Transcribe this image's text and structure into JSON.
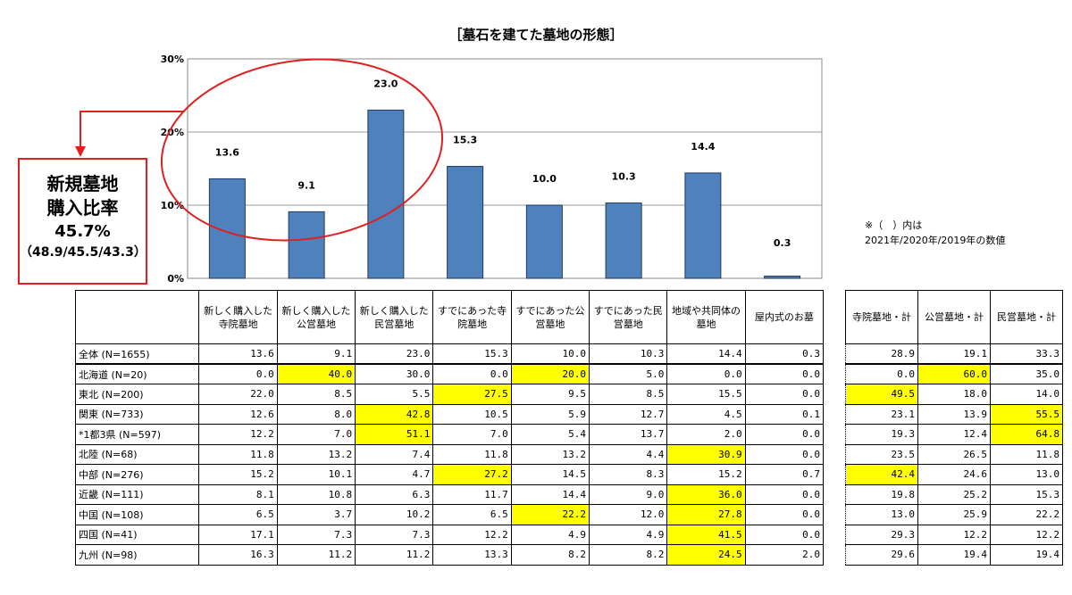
{
  "chart_data": {
    "type": "bar",
    "title": "［墓石を建てた墓地の形態］",
    "categories": [
      "新しく購入した寺院墓地",
      "新しく購入した公営墓地",
      "新しく購入した民営墓地",
      "すでにあった寺院墓地",
      "すでにあった公営墓地",
      "すでにあった民営墓地",
      "地域や共同体の墓地",
      "屋内式のお墓"
    ],
    "values": [
      13.6,
      9.1,
      23.0,
      15.3,
      10.0,
      10.3,
      14.4,
      0.3
    ],
    "value_labels": [
      "13.6",
      "9.1",
      "23.0",
      "15.3",
      "10.0",
      "10.3",
      "14.4",
      "0.3"
    ],
    "ylim": [
      0,
      30
    ],
    "yticks": [
      "0%",
      "10%",
      "20%",
      "30%"
    ],
    "grid": true,
    "bar_color": "#4f81bd",
    "highlight_color": "#e02020"
  },
  "callout": {
    "line1": "新規墓地",
    "line2": "購入比率",
    "line3": "45.7%",
    "line4": "（48.9/45.5/43.3）"
  },
  "note": {
    "line1": "※（　）内は",
    "line2": "2021年/2020年/2019年の数値"
  },
  "table": {
    "headers": [
      "新しく購入した寺院墓地",
      "新しく購入した公営墓地",
      "新しく購入した民営墓地",
      "すでにあった寺院墓地",
      "すでにあった公営墓地",
      "すでにあった民営墓地",
      "地域や共同体の墓地",
      "屋内式のお墓"
    ],
    "side_headers": [
      "寺院墓地・計",
      "公営墓地・計",
      "民営墓地・計"
    ],
    "rows": [
      {
        "label": "全体 (N=1655)",
        "values": [
          "13.6",
          "9.1",
          "23.0",
          "15.3",
          "10.0",
          "10.3",
          "14.4",
          "0.3"
        ],
        "hl": [],
        "side": [
          "28.9",
          "19.1",
          "33.3"
        ],
        "side_hl": []
      },
      {
        "label": "北海道 (N=20)",
        "values": [
          "0.0",
          "40.0",
          "30.0",
          "0.0",
          "20.0",
          "5.0",
          "0.0",
          "0.0"
        ],
        "hl": [
          1,
          4
        ],
        "side": [
          "0.0",
          "60.0",
          "35.0"
        ],
        "side_hl": [
          1
        ]
      },
      {
        "label": "東北 (N=200)",
        "values": [
          "22.0",
          "8.5",
          "5.5",
          "27.5",
          "9.5",
          "8.5",
          "15.5",
          "0.0"
        ],
        "hl": [
          3
        ],
        "side": [
          "49.5",
          "18.0",
          "14.0"
        ],
        "side_hl": [
          0
        ]
      },
      {
        "label": "関東 (N=733)",
        "values": [
          "12.6",
          "8.0",
          "42.8",
          "10.5",
          "5.9",
          "12.7",
          "4.5",
          "0.1"
        ],
        "hl": [
          2
        ],
        "side": [
          "23.1",
          "13.9",
          "55.5"
        ],
        "side_hl": [
          2
        ]
      },
      {
        "label": "*1都3県 (N=597)",
        "values": [
          "12.2",
          "7.0",
          "51.1",
          "7.0",
          "5.4",
          "13.7",
          "2.0",
          "0.0"
        ],
        "hl": [
          2
        ],
        "side": [
          "19.3",
          "12.4",
          "64.8"
        ],
        "side_hl": [
          2
        ]
      },
      {
        "label": "北陸 (N=68)",
        "values": [
          "11.8",
          "13.2",
          "7.4",
          "11.8",
          "13.2",
          "4.4",
          "30.9",
          "0.0"
        ],
        "hl": [
          6
        ],
        "side": [
          "23.5",
          "26.5",
          "11.8"
        ],
        "side_hl": []
      },
      {
        "label": "中部 (N=276)",
        "values": [
          "15.2",
          "10.1",
          "4.7",
          "27.2",
          "14.5",
          "8.3",
          "15.2",
          "0.7"
        ],
        "hl": [
          3
        ],
        "side": [
          "42.4",
          "24.6",
          "13.0"
        ],
        "side_hl": [
          0
        ]
      },
      {
        "label": "近畿 (N=111)",
        "values": [
          "8.1",
          "10.8",
          "6.3",
          "11.7",
          "14.4",
          "9.0",
          "36.0",
          "0.0"
        ],
        "hl": [
          6
        ],
        "side": [
          "19.8",
          "25.2",
          "15.3"
        ],
        "side_hl": []
      },
      {
        "label": "中国 (N=108)",
        "values": [
          "6.5",
          "3.7",
          "10.2",
          "6.5",
          "22.2",
          "12.0",
          "27.8",
          "0.0"
        ],
        "hl": [
          4,
          6
        ],
        "side": [
          "13.0",
          "25.9",
          "22.2"
        ],
        "side_hl": []
      },
      {
        "label": "四国 (N=41)",
        "values": [
          "17.1",
          "7.3",
          "7.3",
          "12.2",
          "4.9",
          "4.9",
          "41.5",
          "0.0"
        ],
        "hl": [
          6
        ],
        "side": [
          "29.3",
          "12.2",
          "12.2"
        ],
        "side_hl": []
      },
      {
        "label": "九州 (N=98)",
        "values": [
          "16.3",
          "11.2",
          "11.2",
          "13.3",
          "8.2",
          "8.2",
          "24.5",
          "2.0"
        ],
        "hl": [
          6
        ],
        "side": [
          "29.6",
          "19.4",
          "19.4"
        ],
        "side_hl": []
      }
    ]
  }
}
